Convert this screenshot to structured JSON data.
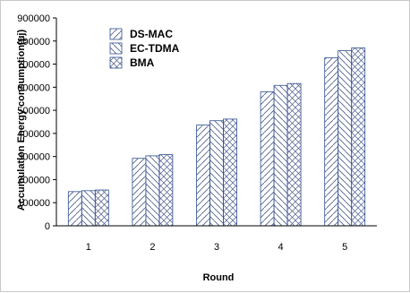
{
  "chart_data": {
    "type": "bar",
    "categories": [
      "1",
      "2",
      "3",
      "4",
      "5"
    ],
    "series": [
      {
        "name": "DS-MAC",
        "values": [
          148000,
          292000,
          436000,
          580000,
          727000
        ],
        "pattern": "forward-diagonal"
      },
      {
        "name": "EC-TDMA",
        "values": [
          152000,
          303000,
          455000,
          608000,
          758000
        ],
        "pattern": "backward-diagonal"
      },
      {
        "name": "BMA",
        "values": [
          155000,
          308000,
          462000,
          616000,
          770000
        ],
        "pattern": "cross-hatch"
      }
    ],
    "xlabel": "Round",
    "ylabel": "Accumulation Energy consumption(μj)",
    "ylim": [
      0,
      900000
    ],
    "yticks": [
      0,
      100000,
      200000,
      300000,
      400000,
      500000,
      600000,
      700000,
      800000,
      900000
    ],
    "ytick_labels": [
      "0",
      "100000",
      "200000",
      "300000",
      "400000",
      "500000",
      "600000",
      "700000",
      "800000",
      "900000"
    ],
    "grid": false,
    "legend_position": "top-left inside plot",
    "colors": {
      "bar_stroke": "#2f4f8f",
      "hatch": "#4a5a8a",
      "axis": "#000000"
    }
  }
}
